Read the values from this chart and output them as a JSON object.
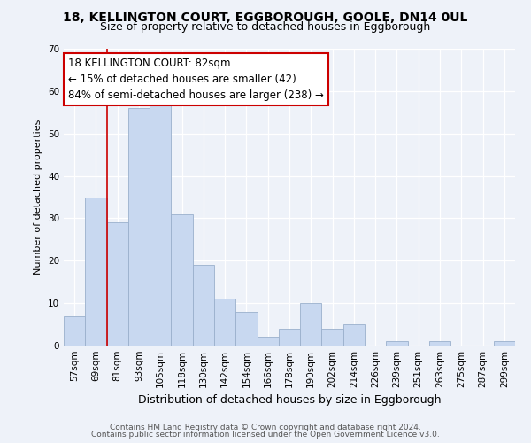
{
  "title_line1": "18, KELLINGTON COURT, EGGBOROUGH, GOOLE, DN14 0UL",
  "title_line2": "Size of property relative to detached houses in Eggborough",
  "xlabel": "Distribution of detached houses by size in Eggborough",
  "ylabel": "Number of detached properties",
  "bar_labels": [
    "57sqm",
    "69sqm",
    "81sqm",
    "93sqm",
    "105sqm",
    "118sqm",
    "130sqm",
    "142sqm",
    "154sqm",
    "166sqm",
    "178sqm",
    "190sqm",
    "202sqm",
    "214sqm",
    "226sqm",
    "239sqm",
    "251sqm",
    "263sqm",
    "275sqm",
    "287sqm",
    "299sqm"
  ],
  "bar_values": [
    7,
    35,
    29,
    56,
    57,
    31,
    19,
    11,
    8,
    2,
    4,
    10,
    4,
    5,
    0,
    1,
    0,
    1,
    0,
    0,
    1
  ],
  "bar_color": "#c8d8f0",
  "bar_edge_color": "#9ab0cc",
  "vline_x": 2,
  "vline_color": "#cc0000",
  "annotation_title": "18 KELLINGTON COURT: 82sqm",
  "annotation_line2": "← 15% of detached houses are smaller (42)",
  "annotation_line3": "84% of semi-detached houses are larger (238) →",
  "annotation_box_facecolor": "#ffffff",
  "annotation_box_edgecolor": "#cc0000",
  "ylim": [
    0,
    70
  ],
  "yticks": [
    0,
    10,
    20,
    30,
    40,
    50,
    60,
    70
  ],
  "footnote1": "Contains HM Land Registry data © Crown copyright and database right 2024.",
  "footnote2": "Contains public sector information licensed under the Open Government Licence v3.0.",
  "bg_color": "#eef2f9",
  "grid_color": "#ffffff",
  "title1_fontsize": 10,
  "title2_fontsize": 9,
  "ylabel_fontsize": 8,
  "xlabel_fontsize": 9,
  "tick_fontsize": 7.5,
  "annot_fontsize": 8.5,
  "footnote_fontsize": 6.5
}
